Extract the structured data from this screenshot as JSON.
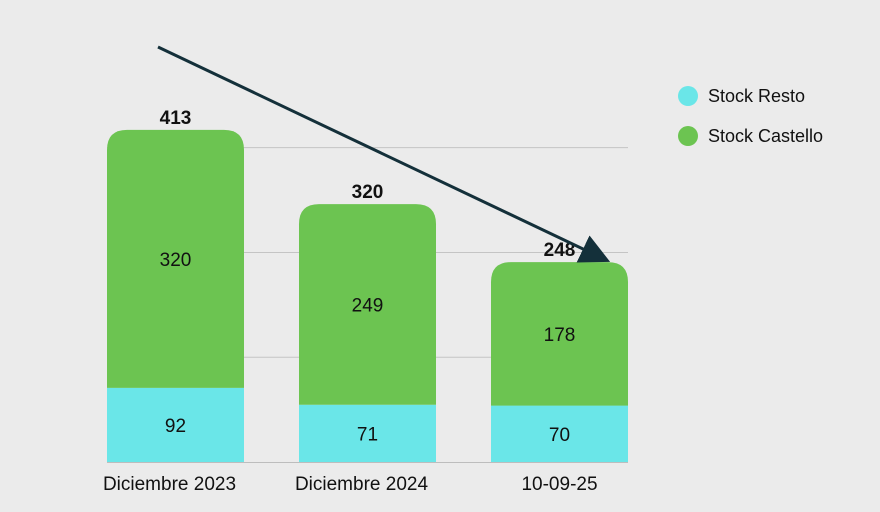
{
  "chart_data": {
    "type": "bar",
    "stacked": true,
    "categories": [
      "Diciembre 2023",
      "Diciembre 2024",
      "10-09-25"
    ],
    "series": [
      {
        "name": "Stock Resto",
        "values": [
          92,
          71,
          70
        ],
        "color": "#6ae6e8"
      },
      {
        "name": "Stock Castello",
        "values": [
          320,
          249,
          178
        ],
        "color": "#6cc451"
      }
    ],
    "totals": [
      413,
      320,
      248
    ],
    "ylim": [
      0,
      400
    ],
    "grid": true,
    "legend_position": "right",
    "annotation": "downward trend arrow from first to last bar"
  }
}
